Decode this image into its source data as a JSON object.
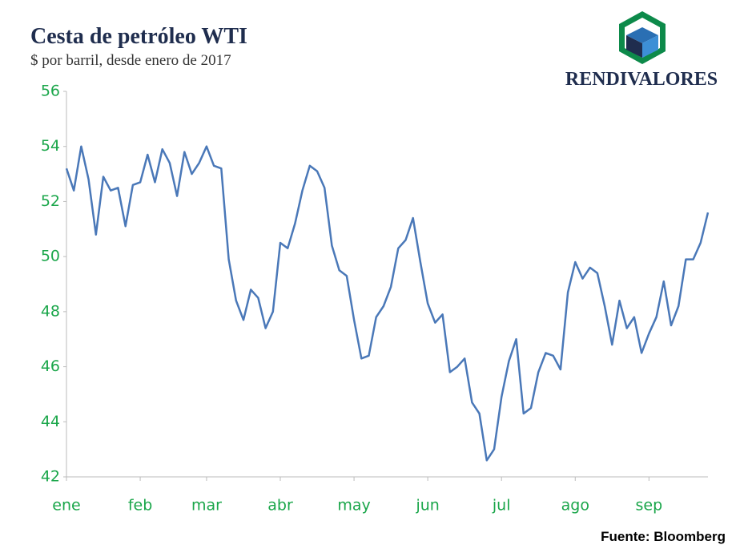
{
  "chart_data": {
    "type": "line",
    "title": "Cesta de petróleo WTI",
    "subtitle": "$ por barril, desde enero de 2017",
    "logo_text": "RENDIVALORES",
    "source": "Fuente: Bloomberg",
    "color": "#4a78b8",
    "categories": [
      "ene",
      null,
      null,
      null,
      null,
      null,
      null,
      null,
      null,
      null,
      "feb",
      null,
      null,
      null,
      null,
      null,
      null,
      null,
      null,
      "mar",
      null,
      null,
      null,
      null,
      null,
      null,
      null,
      null,
      null,
      "abr",
      null,
      null,
      null,
      null,
      null,
      null,
      null,
      null,
      null,
      "may",
      null,
      null,
      null,
      null,
      null,
      null,
      null,
      null,
      null,
      "jun",
      null,
      null,
      null,
      null,
      null,
      null,
      null,
      null,
      null,
      "jul",
      null,
      null,
      null,
      null,
      null,
      null,
      null,
      null,
      null,
      "ago",
      null,
      null,
      null,
      null,
      null,
      null,
      null,
      null,
      null,
      "sep",
      null,
      null,
      null,
      null,
      null,
      null,
      null,
      null
    ],
    "values": [
      53.2,
      52.4,
      54.0,
      52.8,
      50.8,
      52.9,
      52.4,
      52.5,
      51.1,
      52.6,
      52.7,
      53.7,
      52.7,
      53.9,
      53.4,
      52.2,
      53.8,
      53.0,
      53.4,
      54.0,
      53.3,
      53.2,
      49.9,
      48.4,
      47.7,
      48.8,
      48.5,
      47.4,
      48.0,
      50.5,
      50.3,
      51.2,
      52.4,
      53.3,
      53.1,
      52.5,
      50.4,
      49.5,
      49.3,
      47.7,
      46.3,
      46.4,
      47.8,
      48.2,
      48.9,
      50.3,
      50.6,
      51.4,
      49.8,
      48.3,
      47.6,
      47.9,
      45.8,
      46.0,
      46.3,
      44.7,
      44.3,
      42.6,
      43.0,
      44.9,
      46.2,
      47.0,
      44.3,
      44.5,
      45.8,
      46.5,
      46.4,
      45.9,
      48.7,
      49.8,
      49.2,
      49.6,
      49.4,
      48.2,
      46.8,
      48.4,
      47.4,
      47.8,
      46.5,
      47.2,
      47.8,
      49.1,
      47.5,
      48.2,
      49.9,
      49.9,
      50.5,
      51.6
    ],
    "ylim": [
      42,
      56
    ],
    "yticks": [
      42,
      44,
      46,
      48,
      50,
      52,
      54,
      56
    ]
  }
}
